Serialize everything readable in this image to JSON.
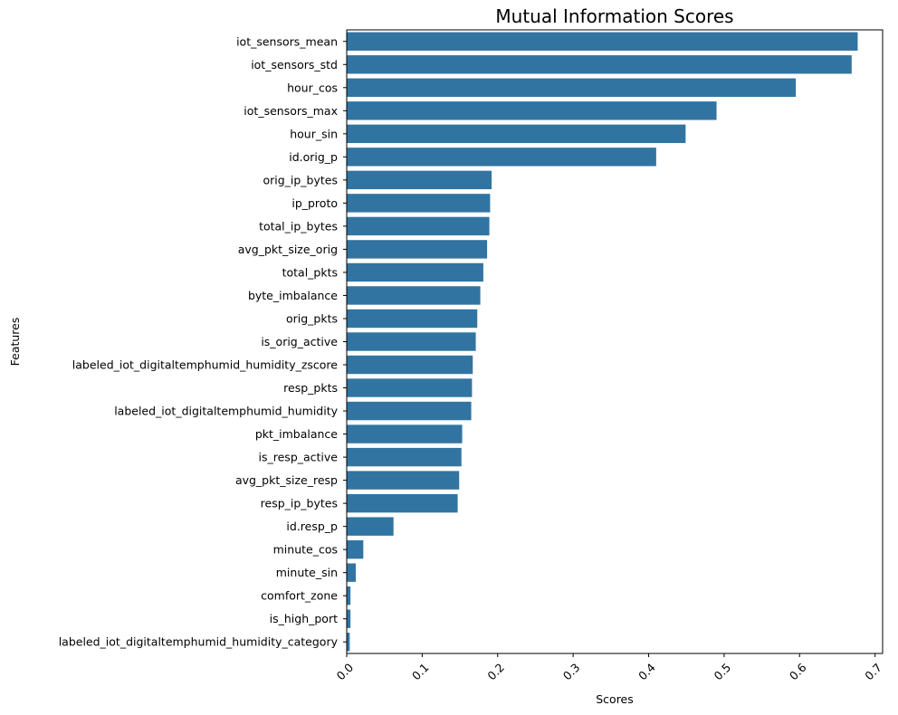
{
  "chart_data": {
    "type": "bar",
    "orientation": "horizontal",
    "title": "Mutual Information Scores",
    "xlabel": "Scores",
    "ylabel": "Features",
    "xlim": [
      0,
      0.71
    ],
    "xticks": [
      "0.0",
      "0.1",
      "0.2",
      "0.3",
      "0.4",
      "0.5",
      "0.6",
      "0.7"
    ],
    "xtick_values": [
      0,
      0.1,
      0.2,
      0.3,
      0.4,
      0.5,
      0.6,
      0.7
    ],
    "grid": false,
    "bar_color": "#3274a1",
    "categories": [
      "iot_sensors_mean",
      "iot_sensors_std",
      "hour_cos",
      "iot_sensors_max",
      "hour_sin",
      "id.orig_p",
      "orig_ip_bytes",
      "ip_proto",
      "total_ip_bytes",
      "avg_pkt_size_orig",
      "total_pkts",
      "byte_imbalance",
      "orig_pkts",
      "is_orig_active",
      "labeled_iot_digitaltemphumid_humidity_zscore",
      "resp_pkts",
      "labeled_iot_digitaltemphumid_humidity",
      "pkt_imbalance",
      "is_resp_active",
      "avg_pkt_size_resp",
      "resp_ip_bytes",
      "id.resp_p",
      "minute_cos",
      "minute_sin",
      "comfort_zone",
      "is_high_port",
      "labeled_iot_digitaltemphumid_humidity_category"
    ],
    "values": [
      0.677,
      0.669,
      0.595,
      0.49,
      0.449,
      0.41,
      0.192,
      0.19,
      0.189,
      0.186,
      0.181,
      0.177,
      0.173,
      0.171,
      0.167,
      0.166,
      0.165,
      0.153,
      0.152,
      0.149,
      0.147,
      0.062,
      0.022,
      0.012,
      0.005,
      0.005,
      0.004
    ]
  }
}
